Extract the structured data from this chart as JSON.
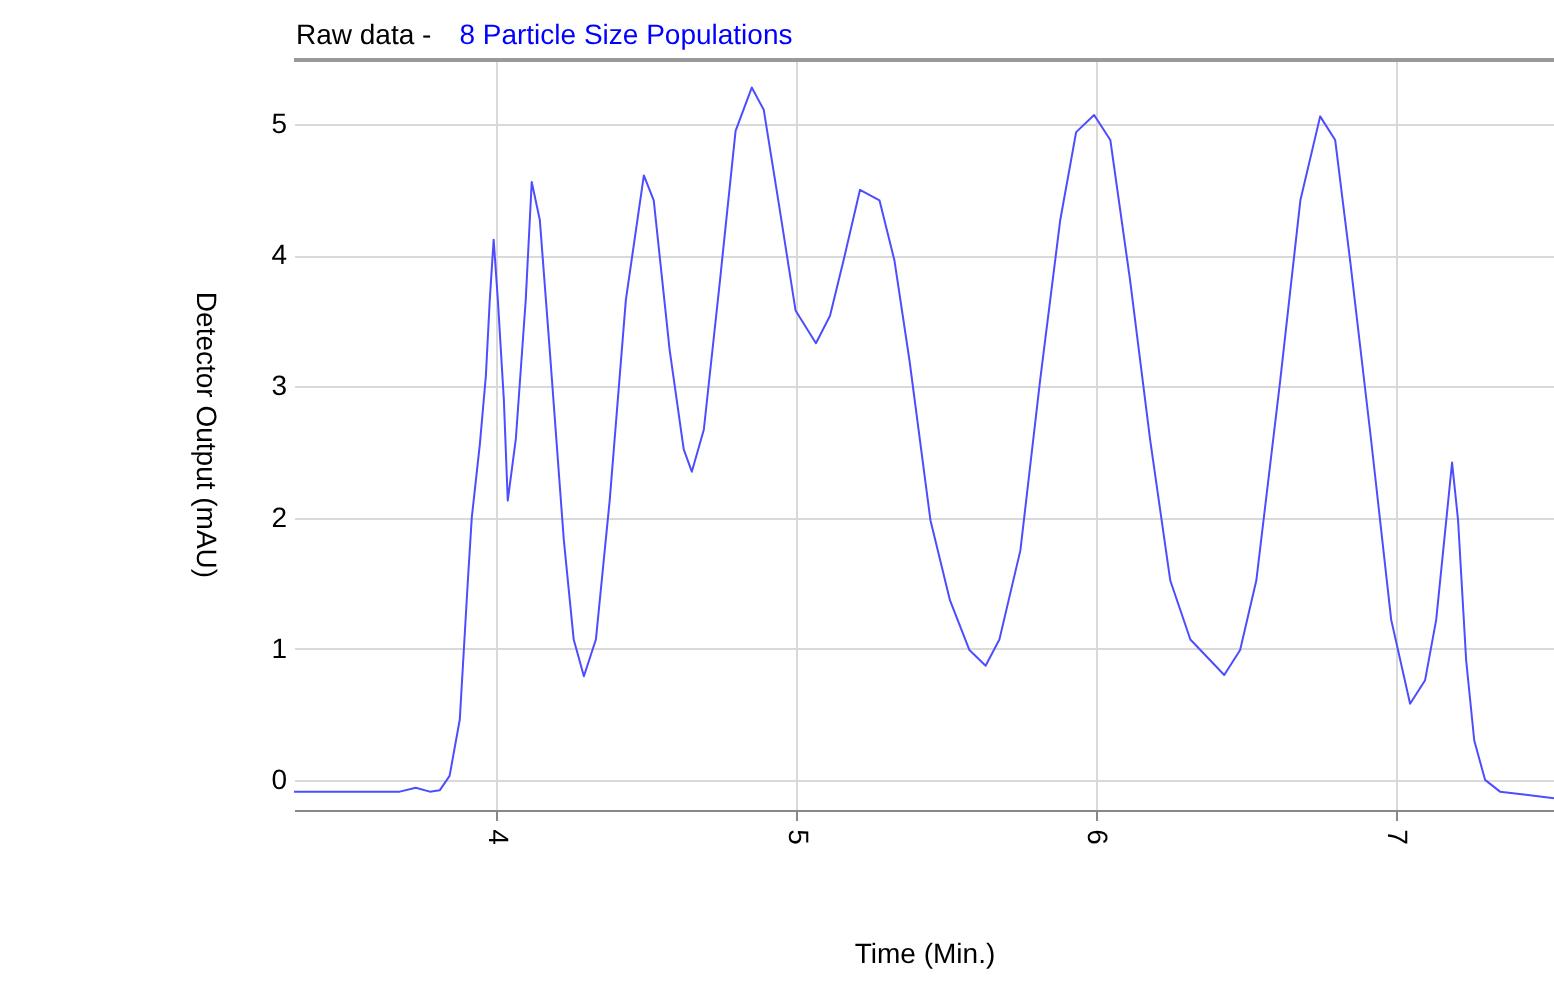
{
  "chart_data": {
    "type": "line",
    "title": "Raw data -",
    "subtitle": "8 Particle Size Populations",
    "xlabel": "Time (Min.)",
    "ylabel": "Detector Output (mAU)",
    "x": [
      3.327,
      3.546,
      3.68,
      3.733,
      3.78,
      3.813,
      3.846,
      3.88,
      3.907,
      3.92,
      3.947,
      3.967,
      3.98,
      3.993,
      4.007,
      4.027,
      4.04,
      4.067,
      4.1,
      4.12,
      4.147,
      4.18,
      4.227,
      4.26,
      4.294,
      4.334,
      4.38,
      4.434,
      4.494,
      4.527,
      4.58,
      4.627,
      4.654,
      4.694,
      4.748,
      4.8,
      4.854,
      4.894,
      4.948,
      5.0,
      5.068,
      5.115,
      5.16,
      5.215,
      5.28,
      5.33,
      5.38,
      5.45,
      5.515,
      5.58,
      5.634,
      5.68,
      5.75,
      5.816,
      5.883,
      5.936,
      5.996,
      6.05,
      6.116,
      6.183,
      6.25,
      6.317,
      6.43,
      6.483,
      6.537,
      6.617,
      6.684,
      6.75,
      6.8,
      6.85,
      6.92,
      6.987,
      7.05,
      7.1,
      7.137,
      7.164,
      7.19,
      7.21,
      7.237,
      7.264,
      7.3,
      7.35,
      7.53
    ],
    "series": [
      {
        "color": "#4d4dff",
        "values": [
          -0.09,
          -0.09,
          -0.09,
          -0.06,
          -0.09,
          -0.08,
          0.03,
          0.46,
          1.52,
          2.0,
          2.56,
          3.08,
          3.66,
          4.12,
          3.66,
          2.9,
          2.13,
          2.6,
          3.66,
          4.56,
          4.27,
          3.28,
          1.83,
          1.07,
          0.79,
          1.07,
          2.13,
          3.66,
          4.61,
          4.42,
          3.28,
          2.52,
          2.35,
          2.67,
          3.81,
          4.95,
          5.28,
          5.11,
          4.34,
          3.58,
          3.33,
          3.54,
          3.96,
          4.5,
          4.42,
          3.96,
          3.2,
          1.98,
          1.37,
          0.99,
          0.87,
          1.07,
          1.75,
          3.05,
          4.27,
          4.94,
          5.07,
          4.88,
          3.81,
          2.59,
          1.52,
          1.07,
          0.8,
          0.99,
          1.52,
          3.05,
          4.42,
          5.06,
          4.88,
          3.96,
          2.59,
          1.22,
          0.58,
          0.76,
          1.22,
          1.83,
          2.42,
          1.98,
          0.91,
          0.3,
          0.0,
          -0.09,
          -0.14
        ]
      }
    ],
    "xlim": [
      3.327,
      7.53
    ],
    "ylim": [
      -0.23,
      5.49
    ],
    "xticks": [
      4,
      5,
      6,
      7
    ],
    "yticks": [
      0,
      1,
      2,
      3,
      4,
      5
    ],
    "grid": true,
    "line_style": "solid"
  }
}
